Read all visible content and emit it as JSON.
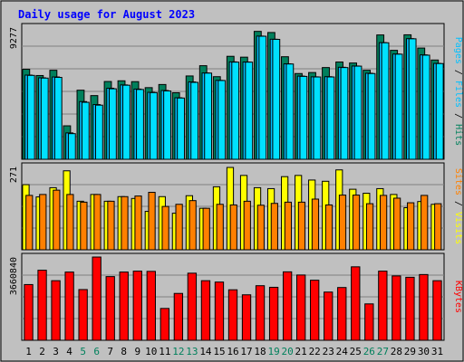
{
  "title": "Daily usage for August 2023",
  "colors": {
    "background": "#c0c0c0",
    "plot_bg": "#c0c0c0",
    "border": "#000000",
    "title": "#0000ff",
    "hits": "#00805c",
    "files": "#00c0ff",
    "pages": "#00e0ff",
    "visits": "#ffff00",
    "sites": "#ff8000",
    "kbytes": "#ff0000",
    "weekday_label": "#000000",
    "weekend_label": "#00805c"
  },
  "chart_data": [
    {
      "type": "bar",
      "name": "hits-files-pages",
      "ylabel_parts": [
        "Pages",
        "Files",
        "Hits"
      ],
      "ytick_label": "9277",
      "ylim": [
        0,
        9277
      ],
      "categories": [
        "1",
        "2",
        "3",
        "4",
        "5",
        "6",
        "7",
        "8",
        "9",
        "10",
        "11",
        "12",
        "13",
        "14",
        "15",
        "16",
        "17",
        "18",
        "19",
        "20",
        "21",
        "22",
        "23",
        "24",
        "25",
        "26",
        "27",
        "28",
        "29",
        "30",
        "31"
      ],
      "series": [
        {
          "name": "Hits",
          "values": [
            6320,
            5880,
            6250,
            2350,
            4850,
            4470,
            5460,
            5510,
            5450,
            5030,
            5250,
            4670,
            5850,
            6570,
            5800,
            7230,
            7170,
            8980,
            8900,
            7200,
            6020,
            6090,
            6440,
            6830,
            6760,
            6250,
            8730,
            7650,
            8740,
            7810,
            6970
          ]
        },
        {
          "name": "Files",
          "values": [
            5910,
            5720,
            5780,
            1850,
            4050,
            3840,
            4990,
            5220,
            4930,
            4700,
            4830,
            4320,
            5430,
            6060,
            5540,
            6840,
            6830,
            8650,
            8430,
            6700,
            5840,
            5790,
            5800,
            6460,
            6550,
            6040,
            8190,
            7390,
            8470,
            7330,
            6730
          ]
        },
        {
          "name": "Pages",
          "values": [
            5890,
            5700,
            5750,
            1800,
            4000,
            3800,
            4950,
            5200,
            4900,
            4680,
            4800,
            4300,
            5400,
            6050,
            5530,
            6820,
            6820,
            8640,
            8420,
            6690,
            5820,
            5780,
            5780,
            6440,
            6540,
            6020,
            8180,
            7380,
            8460,
            7310,
            6720
          ]
        }
      ]
    },
    {
      "type": "bar",
      "name": "visits-sites",
      "ylabel_parts": [
        "Sites",
        "Visits"
      ],
      "ytick_label": "271",
      "ylim": [
        0,
        271
      ],
      "categories": [
        "1",
        "2",
        "3",
        "4",
        "5",
        "6",
        "7",
        "8",
        "9",
        "10",
        "11",
        "12",
        "13",
        "14",
        "15",
        "16",
        "17",
        "18",
        "19",
        "20",
        "21",
        "22",
        "23",
        "24",
        "25",
        "26",
        "27",
        "28",
        "29",
        "30",
        "31"
      ],
      "series": [
        {
          "name": "Visits",
          "values": [
            212,
            172,
            202,
            257,
            158,
            180,
            158,
            173,
            167,
            125,
            173,
            119,
            176,
            135,
            205,
            268,
            242,
            202,
            199,
            238,
            242,
            227,
            223,
            260,
            197,
            184,
            199,
            180,
            137,
            157,
            148
          ]
        },
        {
          "name": "Sites",
          "values": [
            177,
            180,
            194,
            180,
            155,
            180,
            158,
            173,
            175,
            187,
            141,
            148,
            160,
            135,
            148,
            146,
            158,
            145,
            151,
            155,
            155,
            165,
            146,
            178,
            178,
            150,
            177,
            168,
            153,
            177,
            150
          ]
        }
      ]
    },
    {
      "type": "bar",
      "name": "kbytes",
      "ylabel_parts": [
        "KBytes"
      ],
      "ytick_label": "3660840",
      "ylim": [
        0,
        3660840
      ],
      "categories": [
        "1",
        "2",
        "3",
        "4",
        "5",
        "6",
        "7",
        "8",
        "9",
        "10",
        "11",
        "12",
        "13",
        "14",
        "15",
        "16",
        "17",
        "18",
        "19",
        "20",
        "21",
        "22",
        "23",
        "24",
        "25",
        "26",
        "27",
        "28",
        "29",
        "30",
        "31"
      ],
      "series": [
        {
          "name": "KBytes",
          "values": [
            2450000,
            3080000,
            2620000,
            3000000,
            2230000,
            3660000,
            2800000,
            3000000,
            3040000,
            3030000,
            1400000,
            2060000,
            2950000,
            2620000,
            2560000,
            2220000,
            2000000,
            2400000,
            2330000,
            3010000,
            2870000,
            2640000,
            2120000,
            2320000,
            3230000,
            1600000,
            3040000,
            2830000,
            2770000,
            2890000,
            2620000
          ]
        }
      ]
    }
  ],
  "weekend_days": [
    "5",
    "6",
    "12",
    "13",
    "19",
    "20",
    "26",
    "27"
  ]
}
